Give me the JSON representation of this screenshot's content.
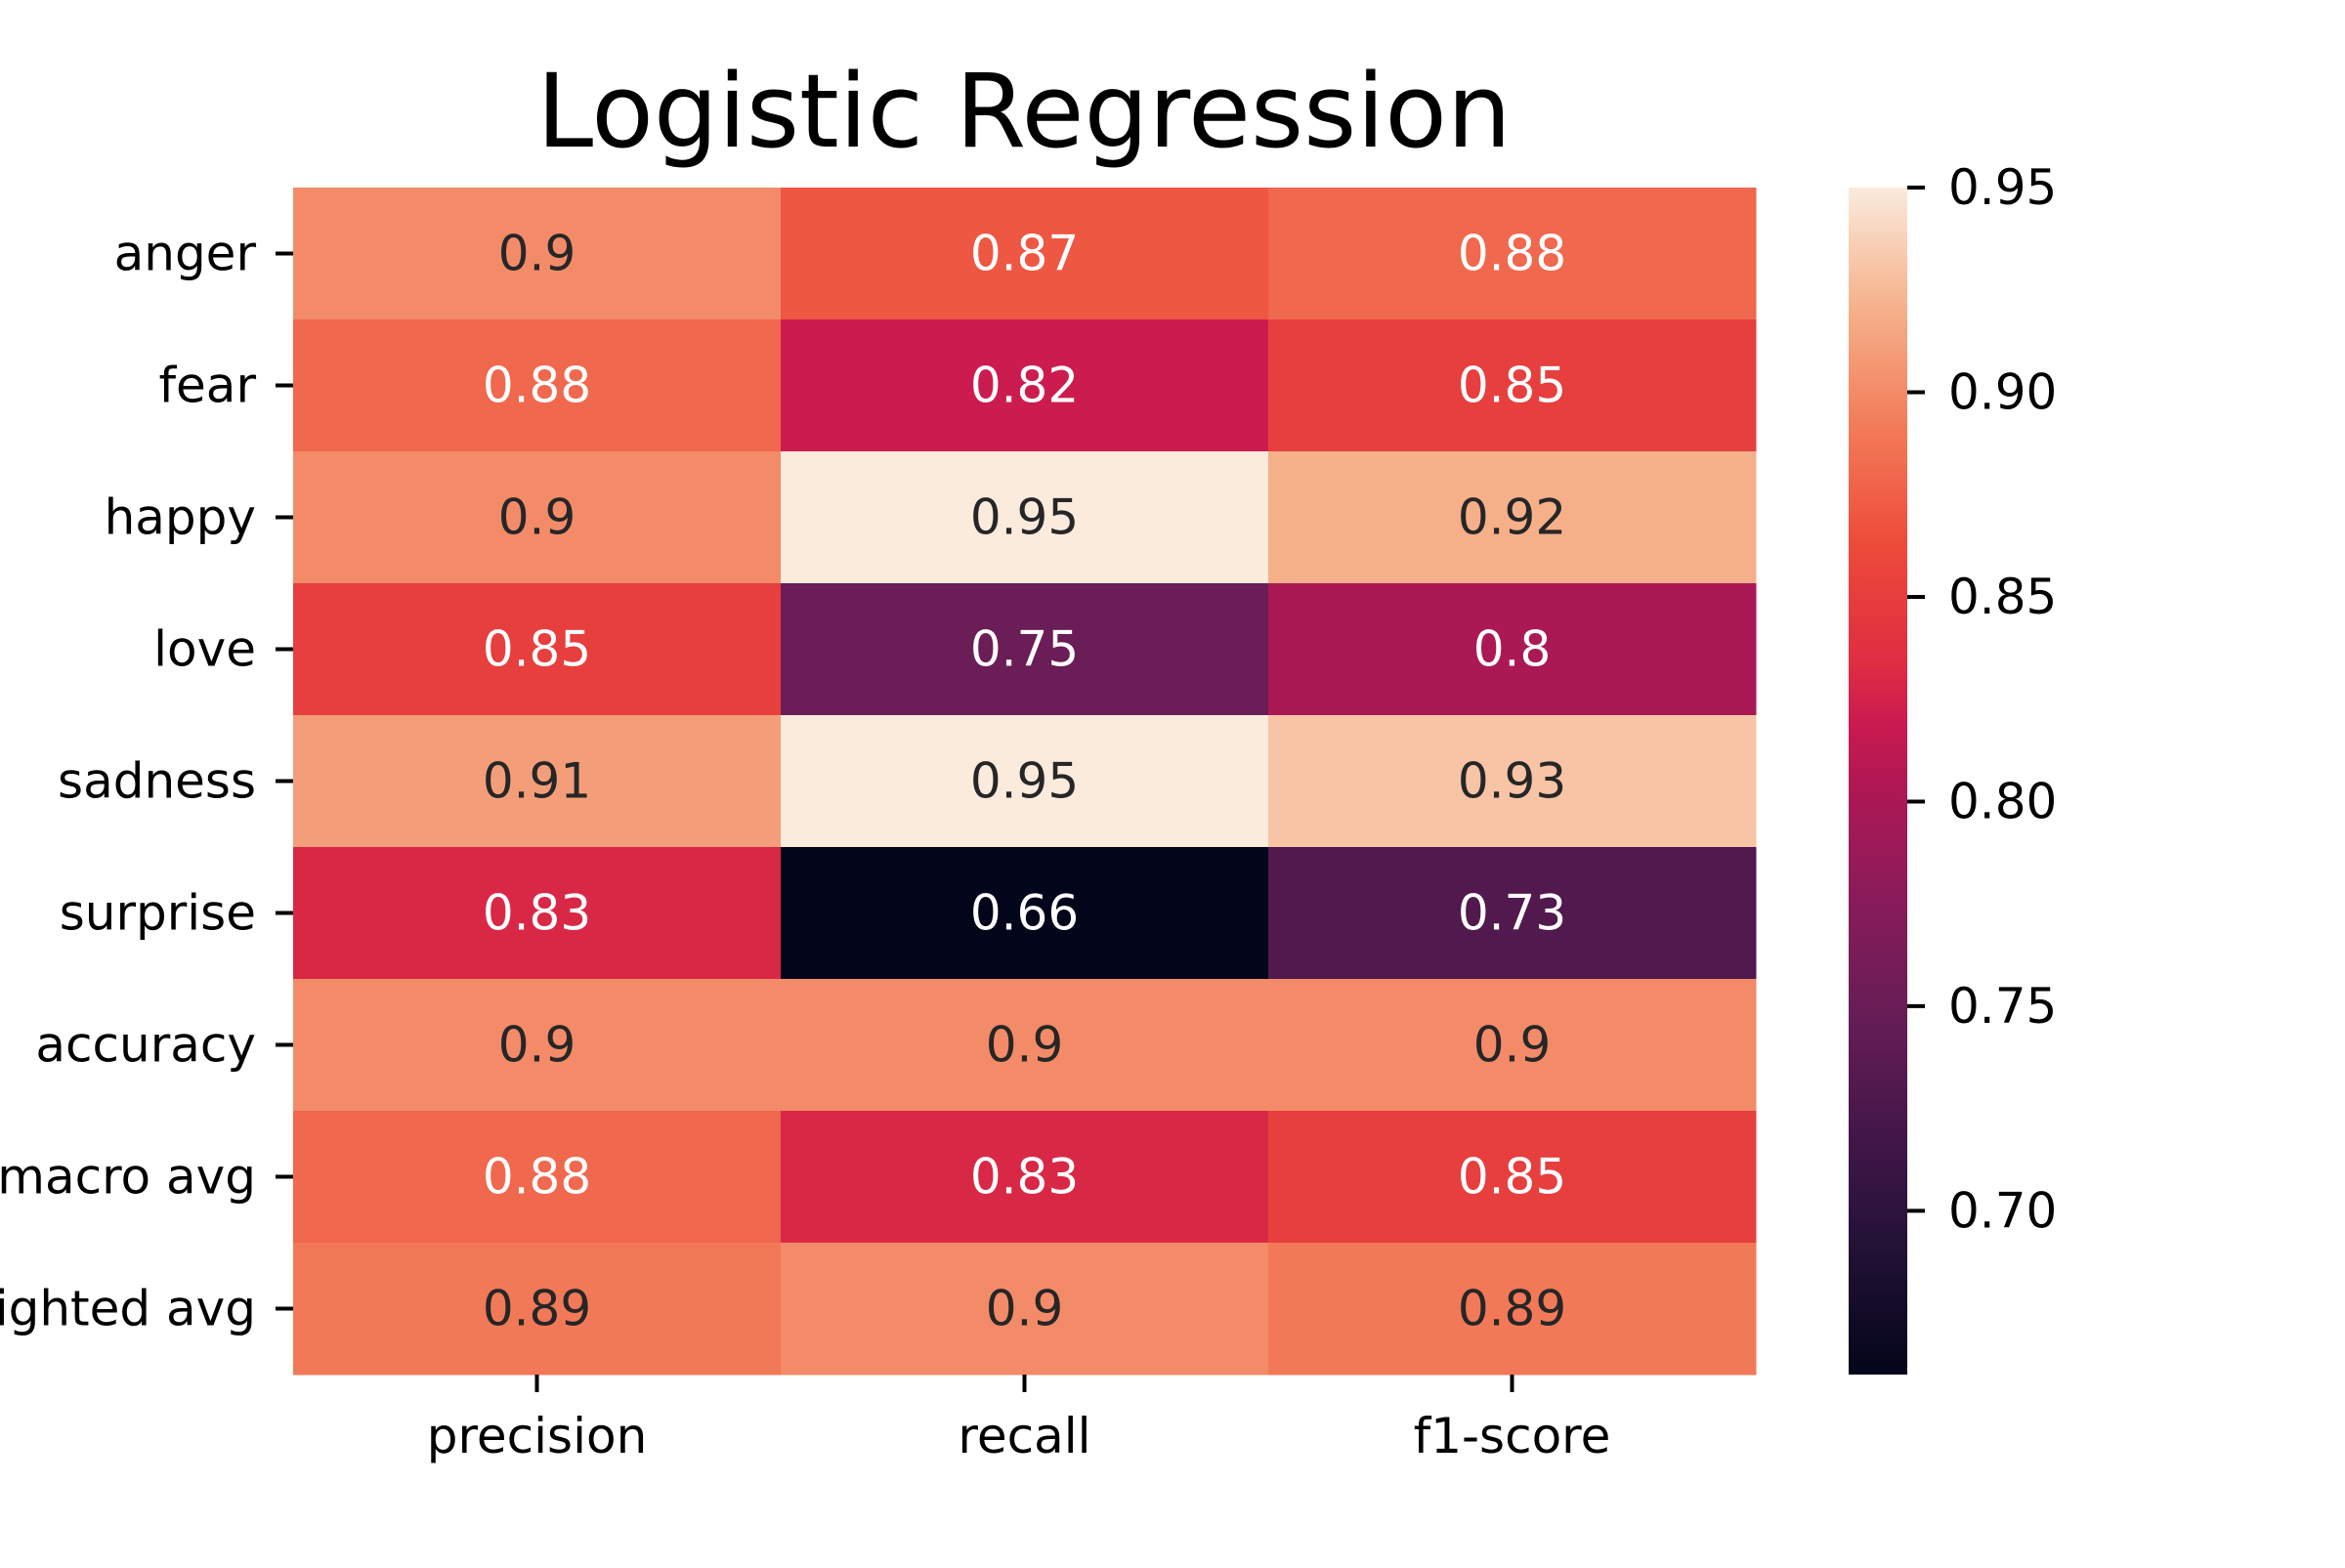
{
  "chart_data": {
    "type": "heatmap",
    "title": "Logistic Regression",
    "xlabel": "",
    "ylabel": "",
    "columns": [
      "precision",
      "recall",
      "f1-score"
    ],
    "rows": [
      "anger",
      "fear",
      "happy",
      "love",
      "sadness",
      "surprise",
      "accuracy",
      "macro avg",
      "weighted avg"
    ],
    "values": [
      [
        0.9,
        0.87,
        0.88
      ],
      [
        0.88,
        0.82,
        0.85
      ],
      [
        0.9,
        0.95,
        0.92
      ],
      [
        0.85,
        0.75,
        0.8
      ],
      [
        0.91,
        0.95,
        0.93
      ],
      [
        0.83,
        0.66,
        0.73
      ],
      [
        0.9,
        0.9,
        0.9
      ],
      [
        0.88,
        0.83,
        0.85
      ],
      [
        0.89,
        0.9,
        0.89
      ]
    ],
    "annotations": [
      [
        "0.9",
        "0.87",
        "0.88"
      ],
      [
        "0.88",
        "0.82",
        "0.85"
      ],
      [
        "0.9",
        "0.95",
        "0.92"
      ],
      [
        "0.85",
        "0.75",
        "0.8"
      ],
      [
        "0.91",
        "0.95",
        "0.93"
      ],
      [
        "0.83",
        "0.66",
        "0.73"
      ],
      [
        "0.9",
        "0.9",
        "0.9"
      ],
      [
        "0.88",
        "0.83",
        "0.85"
      ],
      [
        "0.89",
        "0.9",
        "0.89"
      ]
    ],
    "colorbar": {
      "colormap": "rocket",
      "range": [
        0.66,
        0.95
      ],
      "ticks": [
        "0.70",
        "0.75",
        "0.80",
        "0.85",
        "0.90",
        "0.95"
      ],
      "tick_values": [
        0.7,
        0.75,
        0.8,
        0.85,
        0.9,
        0.95
      ],
      "position": "right"
    },
    "grid": false,
    "colors": {
      "dark_text": "#262626",
      "light_text": "#ffffff",
      "axis": "#000000"
    }
  }
}
